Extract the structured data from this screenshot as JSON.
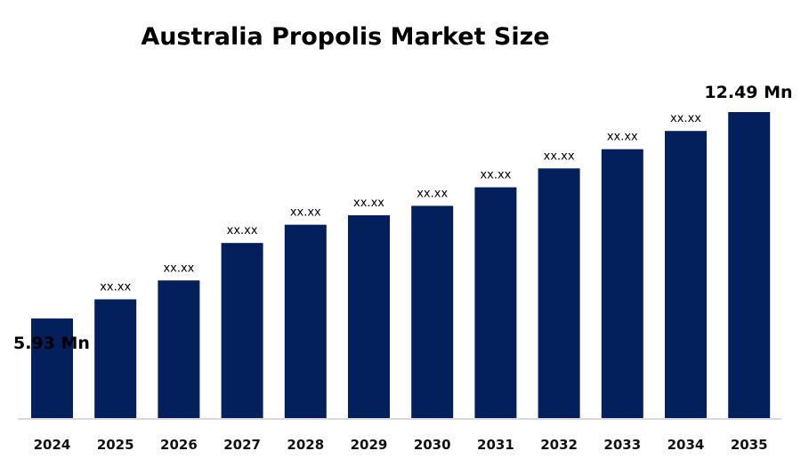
{
  "chart_data": {
    "type": "bar",
    "title": "Australia Propolis Market Size",
    "xlabel": "",
    "ylabel": "",
    "categories": [
      "2024",
      "2025",
      "2026",
      "2027",
      "2028",
      "2029",
      "2030",
      "2031",
      "2032",
      "2033",
      "2034",
      "2035"
    ],
    "values": [
      5.93,
      6.54,
      7.14,
      8.33,
      8.91,
      9.21,
      9.51,
      10.1,
      10.7,
      11.31,
      11.89,
      12.49
    ],
    "data_labels": [
      "5.93 Mn",
      "xx.xx",
      "xx.xx",
      "xx.xx",
      "xx.xx",
      "xx.xx",
      "xx.xx",
      "xx.xx",
      "xx.xx",
      "xx.xx",
      "xx.xx",
      "12.49 Mn"
    ],
    "unit": "Mn",
    "ylim": [
      4.49,
      12.49
    ],
    "grid": false,
    "y_axis_visible": false,
    "bar_color": "#03205c",
    "axis_line_color": "#d9d9d9"
  }
}
